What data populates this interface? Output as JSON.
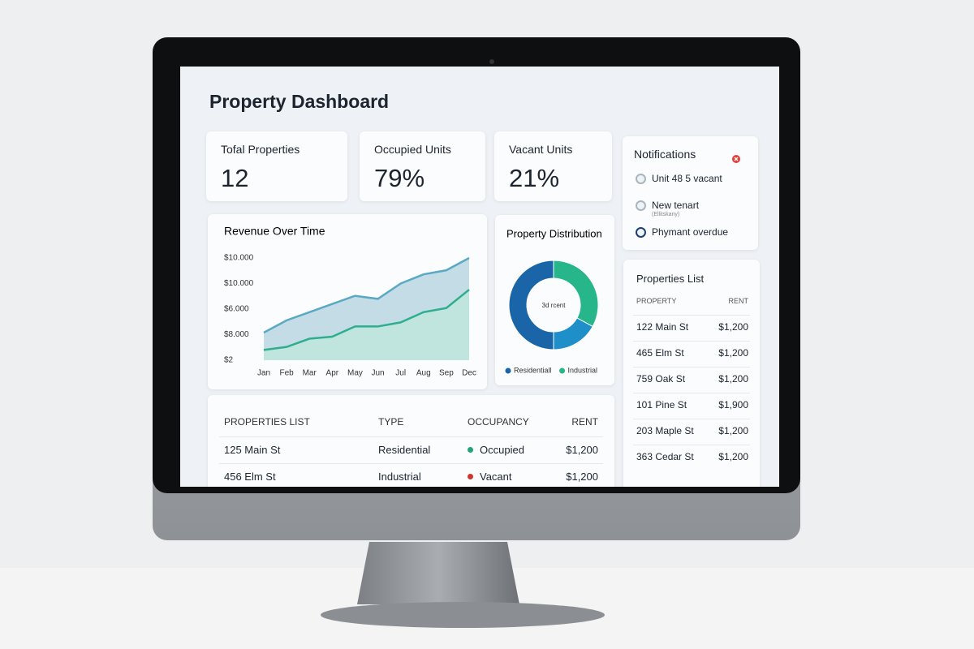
{
  "title": "Property Dashboard",
  "kpis": [
    {
      "label": "Tofal Properties",
      "value": "12"
    },
    {
      "label": "Occupied Units",
      "value": "79%"
    },
    {
      "label": "Vacant Units",
      "value": "21%"
    }
  ],
  "notifications": {
    "title": "Notifications",
    "items": [
      {
        "text": "Unit 48 5 vacant"
      },
      {
        "text": "New tenart",
        "sub": "(Ellitskany)"
      },
      {
        "text": "Phymant overdue"
      }
    ]
  },
  "chart_data": [
    {
      "type": "line",
      "title": "Revenue Over Time",
      "categories": [
        "Jan",
        "Feb",
        "Mar",
        "Apr",
        "May",
        "Jun",
        "Jul",
        "Aug",
        "Sep",
        "Dec"
      ],
      "y_labels": [
        "$10.000",
        "$10.000",
        "$6.000",
        "$8.000",
        "$2"
      ],
      "ylim": [
        0,
        100
      ],
      "series": [
        {
          "color": "#5aa9c4",
          "fill": "#b9d6e2",
          "values": [
            27,
            39,
            47,
            55,
            63,
            60,
            75,
            84,
            88,
            100
          ]
        },
        {
          "color": "#2fae8f",
          "fill": "#bfe6dc",
          "values": [
            10,
            13,
            21,
            23,
            33,
            33,
            37,
            47,
            51,
            69
          ]
        }
      ]
    },
    {
      "type": "pie",
      "title": "Property Distribution",
      "categories": [
        "Residentiall",
        "Industrial",
        null
      ],
      "values": [
        50,
        33,
        17
      ],
      "colors": [
        "#1a64a8",
        "#27b58a",
        "#1e8fc8"
      ],
      "center_label": "3d rcent"
    }
  ],
  "properties_list": {
    "title": "Properties List",
    "header": [
      "PROPERTY",
      "RENT"
    ],
    "rows": [
      [
        "122 Main St",
        "$1,200"
      ],
      [
        "465 Elm St",
        "$1,200"
      ],
      [
        "759 Oak St",
        "$1,200"
      ],
      [
        "101 Pine St",
        "$1,900"
      ],
      [
        "203 Maple St",
        "$1,200"
      ],
      [
        "363 Cedar St",
        "$1,200"
      ]
    ]
  },
  "table": {
    "header": [
      "PROPERTIES LIST",
      "TYPE",
      "OCCUPANCY",
      "RENT"
    ],
    "rows": [
      [
        "125 Main St",
        "Residential",
        "Occupied",
        "$1,200"
      ],
      [
        "456 Elm St",
        "Industrial",
        "Vacant",
        "$1,200"
      ]
    ],
    "status_colors": [
      "#22a37a",
      "#d0342c"
    ]
  }
}
